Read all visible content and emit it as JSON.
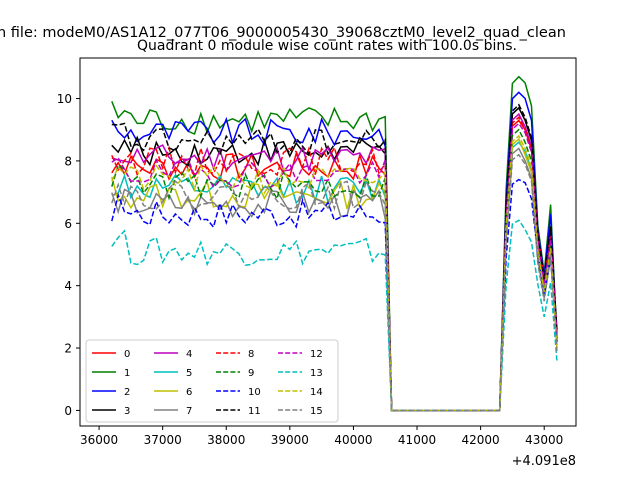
{
  "figure": {
    "suptitle": "n file: modeM0/AS1A12_077T06_9000005430_39068cztM0_level2_quad_clean",
    "title": "Quadrant 0 module wise count rates with 100.0s bins.",
    "x_offset_label": "+4.091e8"
  },
  "chart_data": {
    "type": "line",
    "title": "Quadrant 0 module wise count rates with 100.0s bins.",
    "xlabel": "",
    "ylabel": "",
    "x_offset": 409100000,
    "xlim": [
      35700,
      43500
    ],
    "ylim": [
      -0.5,
      11.3
    ],
    "xticks": [
      36000,
      37000,
      38000,
      39000,
      40000,
      41000,
      42000,
      43000
    ],
    "xtick_labels": [
      "36000",
      "37000",
      "38000",
      "39000",
      "40000",
      "41000",
      "42000",
      "43000"
    ],
    "yticks": [
      0,
      2,
      4,
      6,
      8,
      10
    ],
    "ytick_labels": [
      "0",
      "2",
      "4",
      "6",
      "8",
      "10"
    ],
    "grid": false,
    "legend_position": "lower-left",
    "legend_columns": 4,
    "segments": [
      {
        "x_start": 36200,
        "x_end": 40500,
        "step": 100
      },
      {
        "x": [
          40600,
          42300
        ],
        "zero": true
      },
      {
        "x_start": 42400,
        "x_end": 43200,
        "step": 100
      }
    ],
    "series": [
      {
        "name": "0",
        "color": "#ff0000",
        "dash": false,
        "level": 7.8,
        "pre": 9.3,
        "mid": 9.0,
        "dip": 4.3,
        "peak2": 5.3,
        "end": 2.6
      },
      {
        "name": "1",
        "color": "#008000",
        "dash": false,
        "level": 9.3,
        "pre": 10.7,
        "mid": 10.5,
        "dip": 4.4,
        "peak2": 6.6,
        "end": 2.2
      },
      {
        "name": "2",
        "color": "#0000ff",
        "dash": false,
        "level": 8.9,
        "pre": 10.2,
        "mid": 10.0,
        "dip": 4.3,
        "peak2": 6.3,
        "end": 2.3
      },
      {
        "name": "3",
        "color": "#000000",
        "dash": false,
        "level": 8.3,
        "pre": 9.7,
        "mid": 9.3,
        "dip": 4.1,
        "peak2": 5.9,
        "end": 2.5
      },
      {
        "name": "4",
        "color": "#bf00bf",
        "dash": false,
        "level": 8.1,
        "pre": 9.5,
        "mid": 9.1,
        "dip": 4.0,
        "peak2": 5.7,
        "end": 2.4
      },
      {
        "name": "5",
        "color": "#00bfbf",
        "dash": false,
        "level": 7.1,
        "pre": 8.6,
        "mid": 8.3,
        "dip": 3.9,
        "peak2": 5.5,
        "end": 2.0
      },
      {
        "name": "6",
        "color": "#bfbf00",
        "dash": false,
        "level": 6.9,
        "pre": 8.7,
        "mid": 8.2,
        "dip": 3.8,
        "peak2": 5.1,
        "end": 2.1
      },
      {
        "name": "7",
        "color": "#808080",
        "dash": false,
        "level": 6.6,
        "pre": 8.4,
        "mid": 8.0,
        "dip": 3.6,
        "peak2": 4.9,
        "end": 2.1
      },
      {
        "name": "8",
        "color": "#ff0000",
        "dash": true,
        "level": 8.0,
        "pre": 9.4,
        "mid": 9.0,
        "dip": 4.2,
        "peak2": 5.6,
        "end": 2.5
      },
      {
        "name": "9",
        "color": "#008000",
        "dash": true,
        "level": 7.2,
        "pre": 9.0,
        "mid": 8.6,
        "dip": 3.9,
        "peak2": 5.3,
        "end": 2.3
      },
      {
        "name": "10",
        "color": "#0000ff",
        "dash": true,
        "level": 6.3,
        "pre": 7.4,
        "mid": 7.3,
        "dip": 3.7,
        "peak2": 4.9,
        "end": 2.2
      },
      {
        "name": "11",
        "color": "#000000",
        "dash": true,
        "level": 8.6,
        "pre": 9.8,
        "mid": 9.4,
        "dip": 4.2,
        "peak2": 5.8,
        "end": 2.6
      },
      {
        "name": "12",
        "color": "#bf00bf",
        "dash": true,
        "level": 7.6,
        "pre": 9.2,
        "mid": 8.9,
        "dip": 4.0,
        "peak2": 5.5,
        "end": 2.3
      },
      {
        "name": "13",
        "color": "#00bfbf",
        "dash": true,
        "level": 5.1,
        "pre": 6.1,
        "mid": 5.8,
        "dip": 3.0,
        "peak2": 4.1,
        "end": 1.6
      },
      {
        "name": "14",
        "color": "#bfbf00",
        "dash": true,
        "level": 7.4,
        "pre": 8.8,
        "mid": 8.4,
        "dip": 3.8,
        "peak2": 5.2,
        "end": 2.0
      },
      {
        "name": "15",
        "color": "#808080",
        "dash": true,
        "level": 6.9,
        "pre": 8.2,
        "mid": 7.9,
        "dip": 3.5,
        "peak2": 5.0,
        "end": 1.9
      }
    ]
  }
}
